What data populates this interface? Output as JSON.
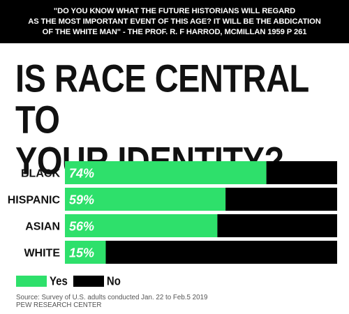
{
  "caption": "\"DO YOU KNOW WHAT THE FUTURE HISTORIANS WILL REGARD\nAS THE MOST IMPORTANT EVENT OF THIS AGE? IT WILL BE THE ABDICATION\nOF THE WHITE MAN\"  - THE PROF. R. F HARROD, MCMILLAN 1959 P 261",
  "chart_data": {
    "type": "bar",
    "title": "IS RACE CENTRAL TO\nYOUR IDENTITY?",
    "categories": [
      "BLACK",
      "HISPANIC",
      "ASIAN",
      "WHITE"
    ],
    "series": [
      {
        "name": "Yes",
        "values": [
          74,
          59,
          56,
          15
        ]
      },
      {
        "name": "No",
        "values": [
          26,
          41,
          44,
          85
        ]
      }
    ],
    "value_labels": [
      "74%",
      "59%",
      "56%",
      "15%"
    ],
    "xlim": [
      0,
      100
    ],
    "orientation": "horizontal",
    "stacked": true,
    "grid": false,
    "legend_position": "bottom-left",
    "colors": {
      "yes": "#2ee06b",
      "no": "#000000"
    }
  },
  "legend": {
    "yes_label": "Yes",
    "no_label": "No"
  },
  "source": {
    "line1": "Source: Survey of U.S. adults conducted Jan. 22 to Feb.5 2019",
    "line2": "PEW RESEARCH CENTER"
  }
}
